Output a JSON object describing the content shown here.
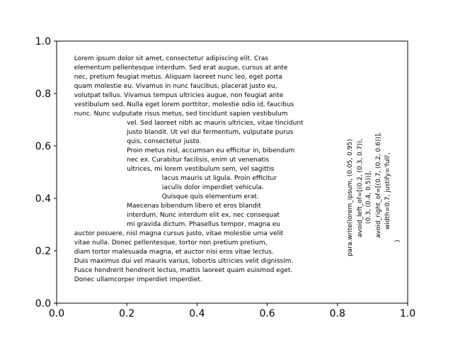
{
  "chart_data": {
    "type": "text",
    "title": "",
    "xlabel": "",
    "ylabel": "",
    "xlim": [
      0.0,
      1.0
    ],
    "ylim": [
      0.0,
      1.0
    ],
    "grid": false,
    "x_ticks": [
      "0.0",
      "0.2",
      "0.4",
      "0.6",
      "0.8",
      "1.0"
    ],
    "y_ticks": [
      "0.0",
      "0.2",
      "0.4",
      "0.6",
      "0.8",
      "1.0"
    ],
    "paragraph_lines": [
      {
        "x": 0.05,
        "text": "Lorem ipsum dolor sit amet, consectetur adipiscing elit. Cras"
      },
      {
        "x": 0.05,
        "text": "elementum pellentesque interdum. Sed erat augue, cursus at ante"
      },
      {
        "x": 0.05,
        "text": "nec, pretium feugiat metus. Aliquam laoreet nunc leo, eget porta"
      },
      {
        "x": 0.05,
        "text": "quam molestie eu. Vivamus in nunc faucibus, placerat justo eu,"
      },
      {
        "x": 0.05,
        "text": "volutpat tellus. Vivamus tempus ultricies augue, non feugiat ante"
      },
      {
        "x": 0.05,
        "text": "vestibulum sed. Nulla eget lorem porttitor, molestie odio id, faucibus"
      },
      {
        "x": 0.05,
        "text": "nunc. Nunc vulputate risus metus, sed tincidunt sapien vestibulum"
      },
      {
        "x": 0.2,
        "text": "vel. Sed laoreet nibh ac mauris ultricies, vitae tincidunt"
      },
      {
        "x": 0.2,
        "text": "justo blandit. Ut vel dui fermentum, vulputate purus"
      },
      {
        "x": 0.2,
        "text": "quis, consectetur justo."
      },
      {
        "x": 0.2,
        "text": "Proin metus nisl, accumsan eu efficitur in, bibendum"
      },
      {
        "x": 0.2,
        "text": "nec ex. Curabitur facilisis, enim ut venenatis"
      },
      {
        "x": 0.2,
        "text": "ultrices, mi lorem vestibulum sem, vel sagittis"
      },
      {
        "x": 0.3,
        "text": "lacus mauris ut ligula. Proin efficitur"
      },
      {
        "x": 0.3,
        "text": "iaculis dolor imperdiet vehicula."
      },
      {
        "x": 0.3,
        "text": "Quisque quis elementum erat."
      },
      {
        "x": 0.2,
        "text": "Maecenas bibendum libero et eros blandit"
      },
      {
        "x": 0.2,
        "text": "interdum. Nunc interdum elit ex, nec consequat"
      },
      {
        "x": 0.2,
        "text": "mi gravida dictum. Phasellus tempor, magna eu"
      },
      {
        "x": 0.05,
        "text": "auctor posuere, nisl magna cursus justo, vitae molestie urna velit"
      },
      {
        "x": 0.05,
        "text": "vitae nulla. Donec pellentesque, tortor non pretium pretium,"
      },
      {
        "x": 0.05,
        "text": "diam tortor malesuada magna, et auctor nisi eros vitae lectus."
      },
      {
        "x": 0.05,
        "text": "Duis maximus dui vel mauris varius, lobortis ultricies velit dignissim."
      },
      {
        "x": 0.05,
        "text": "Fusce hendrerit hendrerit lectus, mattis laoreet quam euismod eget."
      },
      {
        "x": 0.05,
        "text": "Donec ullamcorper imperdiet imperdiet."
      }
    ],
    "rotated_annotation_lines": [
      "para.write(lorem_ipsum, (0.05, 0.95)",
      "avoid_left_of=[(0.2, (0.3, 0.7)),",
      "(0.3, (0.4, 0.5))],",
      "avoid_right_of=[(0.7, (0.2, 0.6))],",
      "width=0.7, justify='full',",
      ")"
    ],
    "colors": {
      "background": "#ffffff",
      "axes": "#000000",
      "text": "#000000"
    }
  }
}
